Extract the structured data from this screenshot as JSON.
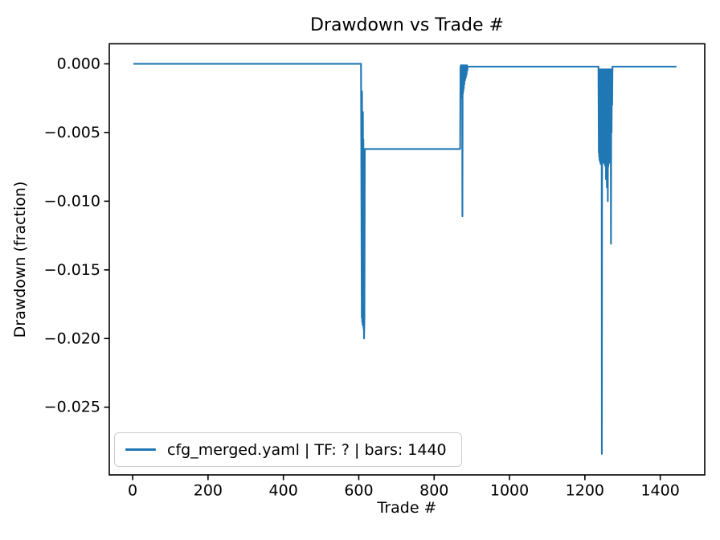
{
  "figure": {
    "background": "#ffffff",
    "spine_color": "#000000",
    "text_color": "#000000"
  },
  "chart_data": {
    "type": "line",
    "title": "Drawdown vs Trade #",
    "xlabel": "Trade #",
    "ylabel": "Drawdown (fraction)",
    "xlim": [
      -62,
      1518
    ],
    "ylim": [
      -0.02993,
      0.00146
    ],
    "grid": false,
    "x_ticks": [
      {
        "v": 0,
        "label": "0"
      },
      {
        "v": 200,
        "label": "200"
      },
      {
        "v": 400,
        "label": "400"
      },
      {
        "v": 600,
        "label": "600"
      },
      {
        "v": 800,
        "label": "800"
      },
      {
        "v": 1000,
        "label": "1000"
      },
      {
        "v": 1200,
        "label": "1200"
      },
      {
        "v": 1400,
        "label": "1400"
      }
    ],
    "y_ticks": [
      {
        "v": 0.0,
        "label": "0.000"
      },
      {
        "v": -0.005,
        "label": "−0.005"
      },
      {
        "v": -0.01,
        "label": "−0.010"
      },
      {
        "v": -0.015,
        "label": "−0.015"
      },
      {
        "v": -0.02,
        "label": "−0.020"
      },
      {
        "v": -0.025,
        "label": "−0.025"
      }
    ],
    "legend": {
      "position": "lower left",
      "entries": [
        {
          "label": "cfg_merged.yaml | TF: ? | bars: 1440",
          "color": "#1f77b4"
        }
      ]
    },
    "series": [
      {
        "name": "cfg_merged.yaml | TF: ? | bars: 1440",
        "color": "#1f77b4",
        "points": [
          [
            2,
            0
          ],
          [
            606,
            0
          ],
          [
            608,
            -0.0185
          ],
          [
            608.6,
            -0.002
          ],
          [
            609.2,
            -0.0188
          ],
          [
            609.8,
            -0.004
          ],
          [
            610.4,
            -0.019
          ],
          [
            611,
            -0.0035
          ],
          [
            611.6,
            -0.0191
          ],
          [
            612.2,
            -0.0055
          ],
          [
            612.8,
            -0.0193
          ],
          [
            613.4,
            -0.0189
          ],
          [
            614,
            -0.02
          ],
          [
            615,
            -0.0186
          ],
          [
            616,
            -0.0062
          ],
          [
            620,
            -0.0062
          ],
          [
            869,
            -0.0062
          ],
          [
            870,
            -0.0002
          ],
          [
            870.5,
            -0.0025
          ],
          [
            871,
            -0.0001
          ],
          [
            871.5,
            -0.0024
          ],
          [
            872,
            -0.0002
          ],
          [
            872.5,
            -0.0023
          ],
          [
            873,
            -0.0001
          ],
          [
            873.5,
            -0.0022
          ],
          [
            874,
            -0.0002
          ],
          [
            874.5,
            -0.0021
          ],
          [
            875,
            -0.0111
          ],
          [
            875.6,
            -0.0002
          ],
          [
            876.2,
            -0.0022
          ],
          [
            876.8,
            -0.0001
          ],
          [
            877.4,
            -0.002
          ],
          [
            878,
            -0.0002
          ],
          [
            878.6,
            -0.0018
          ],
          [
            879.2,
            -0.0001
          ],
          [
            880,
            -0.0015
          ],
          [
            881,
            -0.0002
          ],
          [
            882,
            -0.0012
          ],
          [
            883,
            -0.0001
          ],
          [
            884,
            -0.001
          ],
          [
            885,
            -0.0002
          ],
          [
            886,
            -0.0008
          ],
          [
            887,
            -0.0001
          ],
          [
            888,
            -0.0005
          ],
          [
            889,
            -0.0002
          ],
          [
            890,
            -0.0002
          ],
          [
            1236,
            -0.0002
          ],
          [
            1237,
            -0.0065
          ],
          [
            1237.5,
            -0.0005
          ],
          [
            1238,
            -0.0068
          ],
          [
            1238.5,
            -0.0008
          ],
          [
            1239,
            -0.007
          ],
          [
            1239.5,
            -0.0004
          ],
          [
            1240,
            -0.0071
          ],
          [
            1240.5,
            -0.0006
          ],
          [
            1241,
            -0.0072
          ],
          [
            1241.5,
            -0.0005
          ],
          [
            1242,
            -0.0073
          ],
          [
            1242.5,
            -0.0004
          ],
          [
            1243,
            -0.0071
          ],
          [
            1243.5,
            -0.0006
          ],
          [
            1244,
            -0.0072
          ],
          [
            1244.5,
            -0.0005
          ],
          [
            1245,
            -0.0284
          ],
          [
            1245.8,
            -0.0004
          ],
          [
            1246.4,
            -0.007
          ],
          [
            1247,
            -0.0005
          ],
          [
            1247.6,
            -0.0071
          ],
          [
            1248.2,
            -0.0004
          ],
          [
            1248.8,
            -0.0072
          ],
          [
            1249.4,
            -0.0005
          ],
          [
            1250,
            -0.007
          ],
          [
            1250.6,
            -0.0004
          ],
          [
            1251.2,
            -0.0071
          ],
          [
            1251.8,
            -0.0005
          ],
          [
            1252.4,
            -0.0073
          ],
          [
            1253,
            -0.0006
          ],
          [
            1253.6,
            -0.0074
          ],
          [
            1254.2,
            -0.0004
          ],
          [
            1254.8,
            -0.0075
          ],
          [
            1255.4,
            -0.0005
          ],
          [
            1256,
            -0.0084
          ],
          [
            1256.6,
            -0.0004
          ],
          [
            1257.2,
            -0.0077
          ],
          [
            1257.8,
            -0.0005
          ],
          [
            1258.4,
            -0.009
          ],
          [
            1259,
            -0.0004
          ],
          [
            1259.6,
            -0.0076
          ],
          [
            1260.2,
            -0.0005
          ],
          [
            1260.8,
            -0.01
          ],
          [
            1261.4,
            -0.0004
          ],
          [
            1262,
            -0.0075
          ],
          [
            1262.6,
            -0.0005
          ],
          [
            1263.2,
            -0.0073
          ],
          [
            1263.8,
            -0.0004
          ],
          [
            1264.4,
            -0.0072
          ],
          [
            1265,
            -0.0005
          ],
          [
            1265.6,
            -0.0071
          ],
          [
            1266.2,
            -0.0004
          ],
          [
            1266.8,
            -0.0069
          ],
          [
            1267.4,
            -0.0005
          ],
          [
            1268,
            -0.0066
          ],
          [
            1268.6,
            -0.0004
          ],
          [
            1269.2,
            -0.0131
          ],
          [
            1270,
            -0.0004
          ],
          [
            1270.8,
            -0.005
          ],
          [
            1271.6,
            -0.0004
          ],
          [
            1272.4,
            -0.003
          ],
          [
            1273.2,
            -0.0002
          ],
          [
            1275,
            -0.0002
          ],
          [
            1443,
            -0.0002
          ]
        ]
      }
    ]
  }
}
